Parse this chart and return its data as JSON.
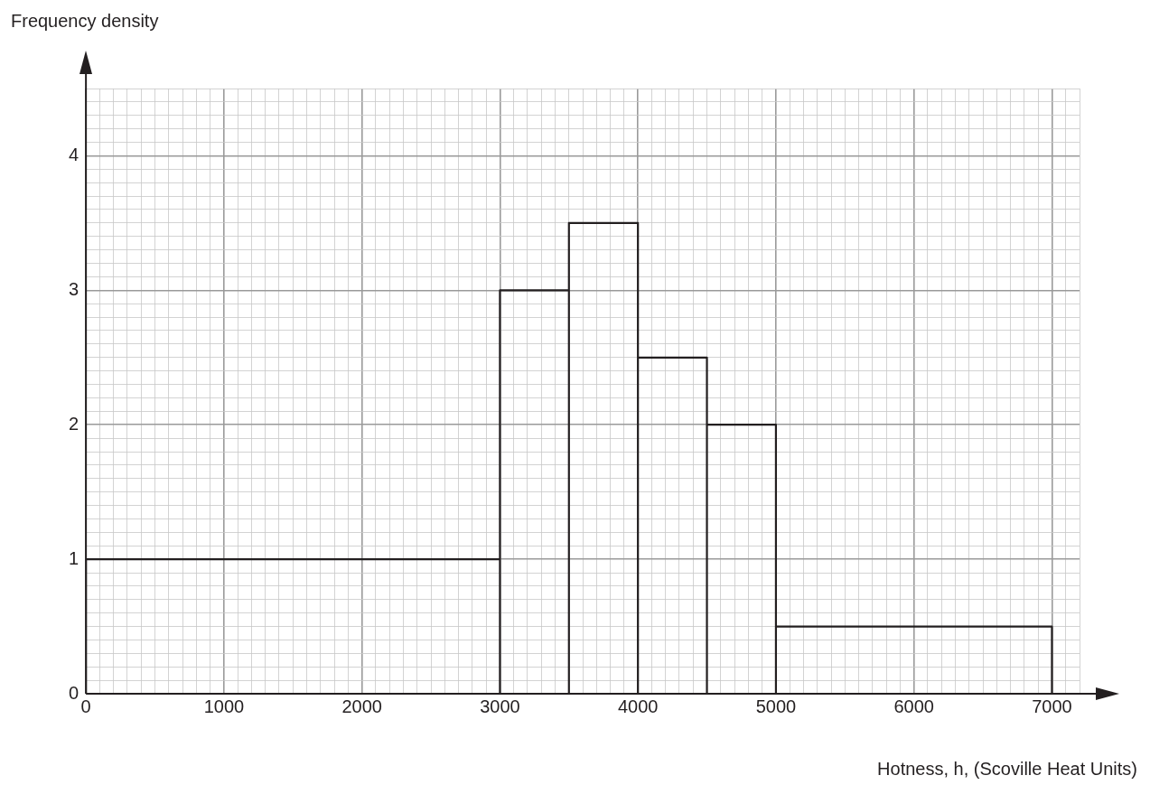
{
  "chart_data": {
    "type": "histogram",
    "xlabel": "Hotness, h, (Scoville Heat Units)",
    "ylabel": "Frequency density",
    "bins": [
      0,
      3000,
      3500,
      4000,
      4500,
      5000,
      7000
    ],
    "values": [
      1,
      3,
      3.5,
      2.5,
      2,
      0.5
    ],
    "color": "#231f20",
    "xlim": [
      0,
      7200
    ],
    "ylim": [
      0,
      4.5
    ],
    "xticks": [
      0,
      {
        "value": 100,
        "label": null
      },
      {
        "value": 200,
        "label": null
      },
      {
        "value": 300,
        "label": null
      },
      {
        "value": 400,
        "label": null
      },
      {
        "value": 500,
        "label": null
      },
      {
        "value": 600,
        "label": null
      },
      {
        "value": 700,
        "label": null
      },
      {
        "value": 800,
        "label": null
      },
      {
        "value": 900,
        "label": null
      },
      1000,
      {
        "value": 1100,
        "label": null
      },
      {
        "value": 1200,
        "label": null
      },
      {
        "value": 1300,
        "label": null
      },
      {
        "value": 1400,
        "label": null
      },
      {
        "value": 1500,
        "label": null
      },
      {
        "value": 1600,
        "label": null
      },
      {
        "value": 1700,
        "label": null
      },
      {
        "value": 1800,
        "label": null
      },
      {
        "value": 1900,
        "label": null
      },
      2000,
      {
        "value": 2100,
        "label": null
      },
      {
        "value": 2200,
        "label": null
      },
      {
        "value": 2300,
        "label": null
      },
      {
        "value": 2400,
        "label": null
      },
      {
        "value": 2500,
        "label": null
      },
      {
        "value": 2600,
        "label": null
      },
      {
        "value": 2700,
        "label": null
      },
      {
        "value": 2800,
        "label": null
      },
      {
        "value": 2900,
        "label": null
      },
      3000,
      {
        "value": 3100,
        "label": null
      },
      {
        "value": 3200,
        "label": null
      },
      {
        "value": 3300,
        "label": null
      },
      {
        "value": 3400,
        "label": null
      },
      {
        "value": 3500,
        "label": null
      },
      {
        "value": 3600,
        "label": null
      },
      {
        "value": 3700,
        "label": null
      },
      {
        "value": 3800,
        "label": null
      },
      {
        "value": 3900,
        "label": null
      },
      4000,
      {
        "value": 4100,
        "label": null
      },
      {
        "value": 4200,
        "label": null
      },
      {
        "value": 4300,
        "label": null
      },
      {
        "value": 4400,
        "label": null
      },
      {
        "value": 4500,
        "label": null
      },
      {
        "value": 4600,
        "label": null
      },
      {
        "value": 4700,
        "label": null
      },
      {
        "value": 4800,
        "label": null
      },
      {
        "value": 4900,
        "label": null
      },
      5000,
      {
        "value": 5100,
        "label": null
      },
      {
        "value": 5200,
        "label": null
      },
      {
        "value": 5300,
        "label": null
      },
      {
        "value": 5400,
        "label": null
      },
      {
        "value": 5500,
        "label": null
      },
      {
        "value": 5600,
        "label": null
      },
      {
        "value": 5700,
        "label": null
      },
      {
        "value": 5800,
        "label": null
      },
      {
        "value": 5900,
        "label": null
      },
      6000,
      {
        "value": 6100,
        "label": null
      },
      {
        "value": 6200,
        "label": null
      },
      {
        "value": 6300,
        "label": null
      },
      {
        "value": 6400,
        "label": null
      },
      {
        "value": 6500,
        "label": null
      },
      {
        "value": 6600,
        "label": null
      },
      {
        "value": 6700,
        "label": null
      },
      {
        "value": 6800,
        "label": null
      },
      {
        "value": 6900,
        "label": null
      },
      7000,
      {
        "value": 7100,
        "label": null
      },
      {
        "value": 7200,
        "label": null
      }
    ],
    "yticks": [
      0,
      {
        "value": 0.1,
        "label": null
      },
      {
        "value": 0.2,
        "label": null
      },
      {
        "value": 0.3,
        "label": null
      },
      {
        "value": 0.4,
        "label": null
      },
      {
        "value": 0.5,
        "label": null
      },
      {
        "value": 0.6,
        "label": null
      },
      {
        "value": 0.7,
        "label": null
      },
      {
        "value": 0.8,
        "label": null
      },
      {
        "value": 0.9,
        "label": null
      },
      1,
      {
        "value": 1.1,
        "label": null
      },
      {
        "value": 1.2,
        "label": null
      },
      {
        "value": 1.3,
        "label": null
      },
      {
        "value": 1.4,
        "label": null
      },
      {
        "value": 1.5,
        "label": null
      },
      {
        "value": 1.6,
        "label": null
      },
      {
        "value": 1.7,
        "label": null
      },
      {
        "value": 1.8,
        "label": null
      },
      {
        "value": 1.9,
        "label": null
      },
      2,
      {
        "value": 2.1,
        "label": null
      },
      {
        "value": 2.2,
        "label": null
      },
      {
        "value": 2.3,
        "label": null
      },
      {
        "value": 2.4,
        "label": null
      },
      {
        "value": 2.5,
        "label": null
      },
      {
        "value": 2.6,
        "label": null
      },
      {
        "value": 2.7,
        "label": null
      },
      {
        "value": 2.8,
        "label": null
      },
      {
        "value": 2.9,
        "label": null
      },
      3,
      {
        "value": 3.1,
        "label": null
      },
      {
        "value": 3.2,
        "label": null
      },
      {
        "value": 3.3,
        "label": null
      },
      {
        "value": 3.4,
        "label": null
      },
      {
        "value": 3.5,
        "label": null
      },
      {
        "value": 3.6,
        "label": null
      },
      {
        "value": 3.7,
        "label": null
      },
      {
        "value": 3.8,
        "label": null
      },
      {
        "value": 3.9,
        "label": null
      },
      4,
      {
        "value": 4.1,
        "label": null
      },
      {
        "value": 4.2,
        "label": null
      },
      {
        "value": 4.3,
        "label": null
      },
      {
        "value": 4.4,
        "label": null
      },
      {
        "value": 4.5,
        "label": null
      }
    ],
    "grid": true
  }
}
